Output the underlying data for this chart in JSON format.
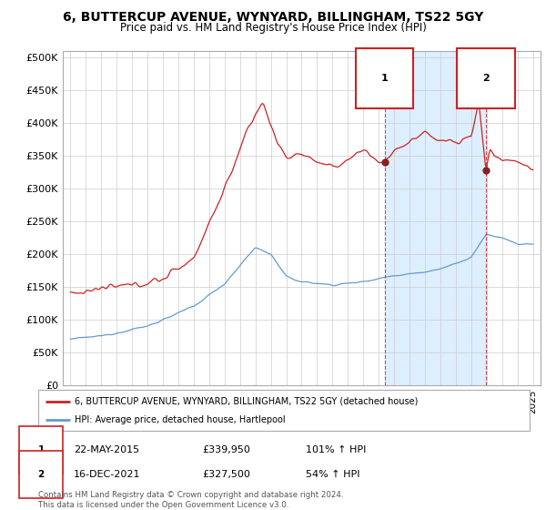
{
  "title": "6, BUTTERCUP AVENUE, WYNYARD, BILLINGHAM, TS22 5GY",
  "subtitle": "Price paid vs. HM Land Registry's House Price Index (HPI)",
  "ylabel_ticks": [
    0,
    50000,
    100000,
    150000,
    200000,
    250000,
    300000,
    350000,
    400000,
    450000,
    500000
  ],
  "ylabel_labels": [
    "£0",
    "£50K",
    "£100K",
    "£150K",
    "£200K",
    "£250K",
    "£300K",
    "£350K",
    "£400K",
    "£450K",
    "£500K"
  ],
  "xlim_start": 1994.5,
  "xlim_end": 2025.5,
  "ylim_min": 0,
  "ylim_max": 510000,
  "line1_color": "#cc2222",
  "line2_color": "#6699cc",
  "highlight_color": "#ddeeff",
  "sale1_date_num": 2015.38,
  "sale1_price": 339950,
  "sale1_label": "22-MAY-2015",
  "sale1_price_label": "£339,950",
  "sale1_pct_label": "101% ↑ HPI",
  "sale2_date_num": 2021.96,
  "sale2_price": 327500,
  "sale2_label": "16-DEC-2021",
  "sale2_price_label": "£327,500",
  "sale2_pct_label": "54% ↑ HPI",
  "legend_line1": "6, BUTTERCUP AVENUE, WYNYARD, BILLINGHAM, TS22 5GY (detached house)",
  "legend_line2": "HPI: Average price, detached house, Hartlepool",
  "footer": "Contains HM Land Registry data © Crown copyright and database right 2024.\nThis data is licensed under the Open Government Licence v3.0.",
  "bg_color": "#ffffff",
  "grid_color": "#cccccc"
}
